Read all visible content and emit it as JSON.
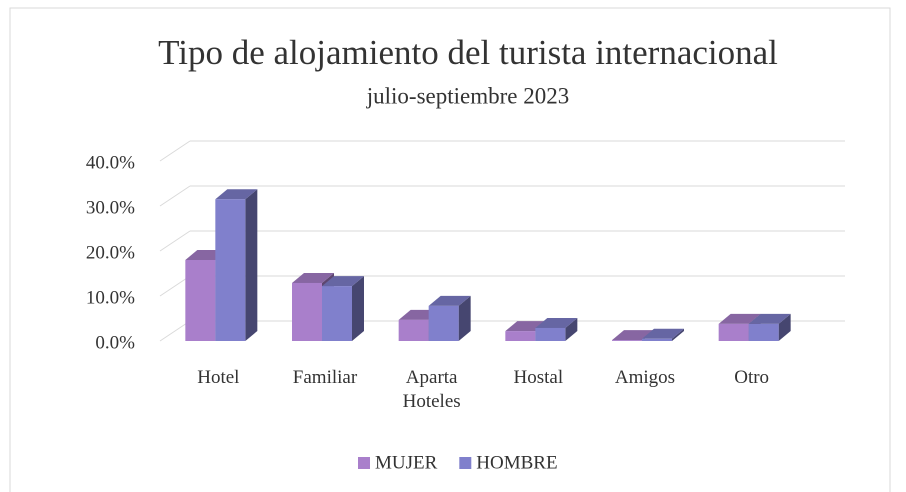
{
  "chart_data": {
    "type": "bar3d",
    "title": "Tipo de alojamiento del turista internacional",
    "subtitle": "julio-septiembre 2023",
    "categories": [
      "Hotel",
      "Familiar",
      "Aparta Hoteles",
      "Hostal",
      "Amigos",
      "Otro"
    ],
    "series": [
      {
        "name": "MUJER",
        "color": "#a97fcb",
        "values": [
          18.0,
          12.9,
          4.7,
          2.2,
          0.2,
          3.8
        ]
      },
      {
        "name": "HOMBRE",
        "color": "#8080cc",
        "values": [
          31.5,
          12.2,
          7.8,
          2.9,
          0.5,
          3.8
        ]
      }
    ],
    "ylim": [
      0,
      40
    ],
    "yticks": [
      {
        "value": 0,
        "label": "0.0%"
      },
      {
        "value": 10,
        "label": "10.0%"
      },
      {
        "value": 20,
        "label": "20.0%"
      },
      {
        "value": 30,
        "label": "30.0%"
      },
      {
        "value": 40,
        "label": "40.0%"
      }
    ],
    "grid": true,
    "legend": "bottom"
  }
}
